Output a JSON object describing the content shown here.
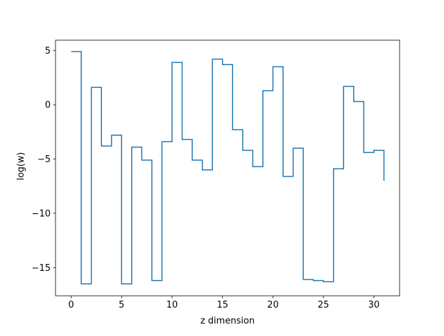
{
  "chart_data": {
    "type": "line",
    "drawstyle": "steps-post",
    "xlabel": "z dimension",
    "ylabel": "log(w)",
    "xlim": [
      -1.55,
      32.55
    ],
    "ylim": [
      -17.6,
      5.95
    ],
    "x_ticks": [
      0,
      5,
      10,
      15,
      20,
      25,
      30
    ],
    "x_tick_labels": [
      "0",
      "5",
      "10",
      "15",
      "20",
      "25",
      "30"
    ],
    "y_ticks": [
      5,
      0,
      -5,
      -10,
      -15
    ],
    "y_tick_labels": [
      "5",
      "0",
      "−5",
      "−10",
      "−15"
    ],
    "grid": false,
    "series": [
      {
        "color": "#1f77b4",
        "x": [
          0,
          1,
          2,
          3,
          4,
          5,
          6,
          7,
          8,
          9,
          10,
          11,
          12,
          13,
          14,
          15,
          16,
          17,
          18,
          19,
          20,
          21,
          22,
          23,
          24,
          25,
          26,
          27,
          28,
          29,
          30,
          31
        ],
        "y": [
          4.9,
          -16.5,
          1.6,
          -3.8,
          -2.8,
          -16.5,
          -3.9,
          -5.1,
          -16.2,
          -3.4,
          3.9,
          -3.2,
          -5.1,
          -6.0,
          4.2,
          3.7,
          -2.3,
          -4.2,
          -5.7,
          1.3,
          3.5,
          -6.6,
          -4.0,
          -16.1,
          -16.2,
          -16.3,
          -5.9,
          1.7,
          0.3,
          -4.4,
          -4.2,
          -7.0
        ]
      }
    ]
  }
}
